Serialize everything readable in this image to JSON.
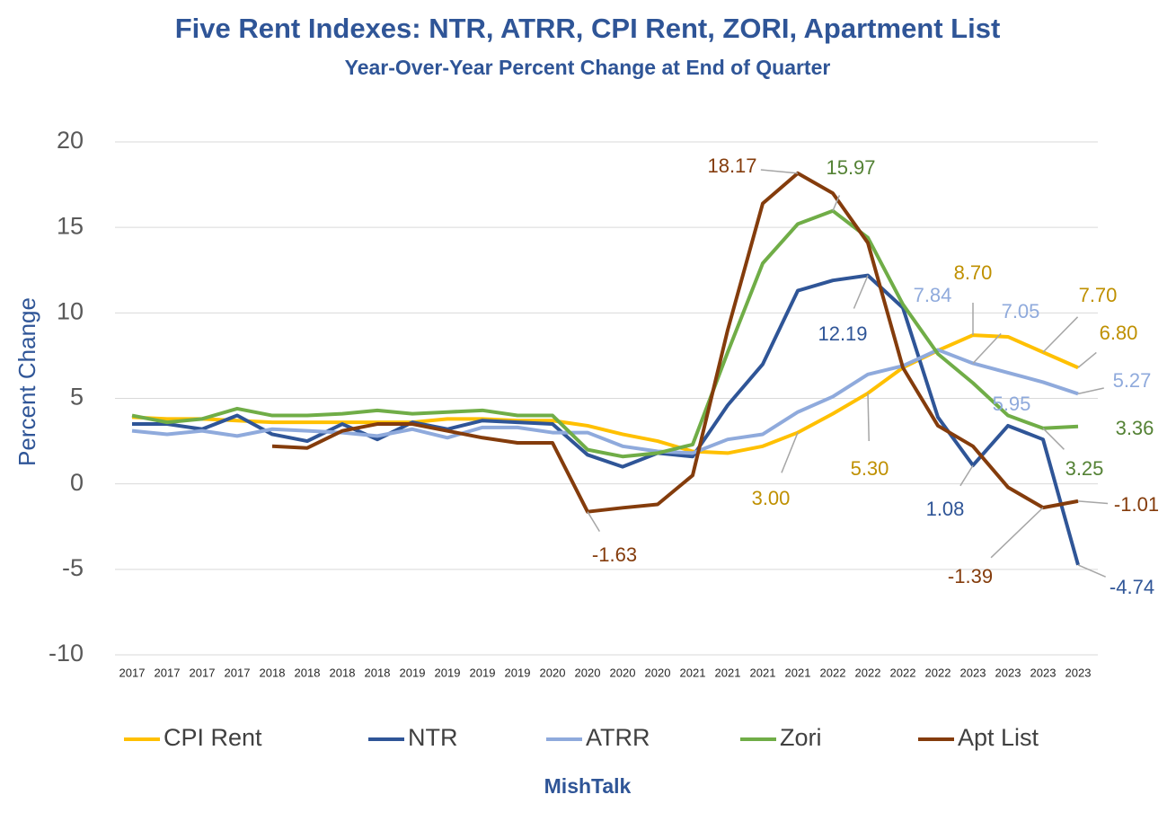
{
  "chart_data": {
    "type": "line",
    "title": "Five Rent Indexes: NTR, ATRR, CPI Rent, ZORI, Apartment List",
    "subtitle": "Year-Over-Year Percent Change at End of Quarter",
    "y_label": "Percent Change",
    "source": "MishTalk",
    "categories": [
      "2017",
      "2017",
      "2017",
      "2017",
      "2018",
      "2018",
      "2018",
      "2018",
      "2019",
      "2019",
      "2019",
      "2019",
      "2020",
      "2020",
      "2020",
      "2020",
      "2021",
      "2021",
      "2021",
      "2021",
      "2022",
      "2022",
      "2022",
      "2022",
      "2023",
      "2023",
      "2023",
      "2023"
    ],
    "ylim": [
      -10,
      20
    ],
    "yticks": [
      20,
      15,
      10,
      5,
      0,
      -5,
      -10
    ],
    "grid": true,
    "legend": "bottom",
    "series": [
      {
        "name": "CPI Rent",
        "color": "#ffc000",
        "label_color": "#bf9000",
        "values": [
          3.9,
          3.8,
          3.8,
          3.7,
          3.6,
          3.6,
          3.6,
          3.6,
          3.6,
          3.8,
          3.8,
          3.7,
          3.7,
          3.4,
          2.9,
          2.5,
          1.9,
          1.8,
          2.2,
          3.0,
          4.1,
          5.3,
          6.8,
          7.8,
          8.7,
          8.6,
          7.7,
          6.8
        ],
        "value_labels": [
          null,
          null,
          null,
          null,
          null,
          null,
          null,
          null,
          null,
          null,
          null,
          null,
          null,
          null,
          null,
          null,
          null,
          null,
          null,
          "3.00",
          null,
          "5.30",
          null,
          null,
          "8.70",
          null,
          "7.70",
          "6.80"
        ]
      },
      {
        "name": "NTR",
        "color": "#2f5597",
        "label_color": "#2f5597",
        "values": [
          3.5,
          3.5,
          3.2,
          4.0,
          2.9,
          2.5,
          3.5,
          2.6,
          3.6,
          3.2,
          3.7,
          3.6,
          3.5,
          1.7,
          1.0,
          1.8,
          1.6,
          4.6,
          7.0,
          11.3,
          11.9,
          12.19,
          10.3,
          3.9,
          1.08,
          3.4,
          2.6,
          -4.74
        ],
        "value_labels": [
          null,
          null,
          null,
          null,
          null,
          null,
          null,
          null,
          null,
          null,
          null,
          null,
          null,
          null,
          null,
          null,
          null,
          null,
          null,
          null,
          null,
          "12.19",
          null,
          null,
          "1.08",
          null,
          null,
          "-4.74"
        ]
      },
      {
        "name": "ATRR",
        "color": "#8faadc",
        "label_color": "#8faadc",
        "values": [
          3.1,
          2.9,
          3.1,
          2.8,
          3.2,
          3.1,
          3.0,
          2.8,
          3.2,
          2.7,
          3.3,
          3.3,
          3.0,
          3.0,
          2.2,
          1.9,
          1.8,
          2.6,
          2.9,
          4.2,
          5.1,
          6.4,
          6.9,
          7.84,
          7.05,
          6.5,
          5.95,
          5.27
        ],
        "value_labels": [
          null,
          null,
          null,
          null,
          null,
          null,
          null,
          null,
          null,
          null,
          null,
          null,
          null,
          null,
          null,
          null,
          null,
          null,
          null,
          null,
          null,
          null,
          null,
          "7.84",
          "7.05",
          null,
          "5.95",
          "5.27"
        ]
      },
      {
        "name": "Zori",
        "color": "#70ad47",
        "label_color": "#548235",
        "values": [
          4.0,
          3.6,
          3.8,
          4.4,
          4.0,
          4.0,
          4.1,
          4.3,
          4.1,
          4.2,
          4.3,
          4.0,
          4.0,
          2.0,
          1.6,
          1.8,
          2.3,
          7.7,
          12.9,
          15.2,
          15.97,
          14.4,
          10.5,
          7.6,
          5.9,
          4.0,
          3.25,
          3.36
        ],
        "value_labels": [
          null,
          null,
          null,
          null,
          null,
          null,
          null,
          null,
          null,
          null,
          null,
          null,
          null,
          null,
          null,
          null,
          null,
          null,
          null,
          null,
          "15.97",
          null,
          null,
          null,
          null,
          null,
          "3.25",
          "3.36"
        ]
      },
      {
        "name": "Apt List",
        "color": "#843c0c",
        "label_color": "#843c0c",
        "values": [
          null,
          null,
          null,
          null,
          2.2,
          2.1,
          3.1,
          3.5,
          3.5,
          3.1,
          2.7,
          2.4,
          2.4,
          -1.63,
          -1.4,
          -1.2,
          0.5,
          9.0,
          16.4,
          18.17,
          17.0,
          14.1,
          6.8,
          3.4,
          2.2,
          -0.2,
          -1.39,
          -1.01
        ],
        "value_labels": [
          null,
          null,
          null,
          null,
          null,
          null,
          null,
          null,
          null,
          null,
          null,
          null,
          null,
          "-1.63",
          null,
          null,
          null,
          null,
          null,
          "18.17",
          null,
          null,
          null,
          null,
          null,
          null,
          "-1.39",
          "-1.01"
        ]
      }
    ]
  }
}
